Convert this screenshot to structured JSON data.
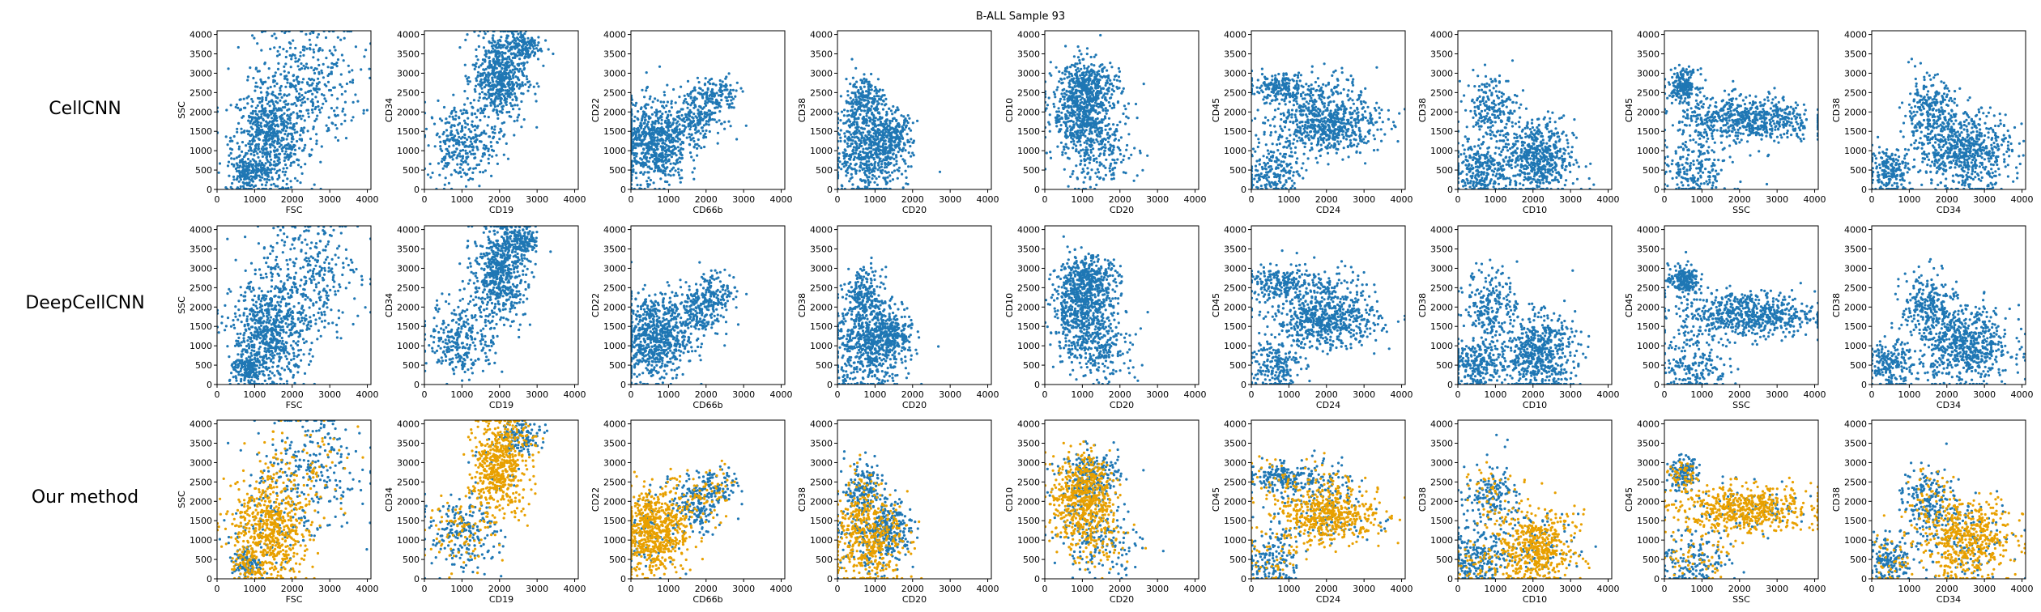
{
  "figure": {
    "title": "B-ALL Sample 93",
    "rows": [
      "CellCNN",
      "DeepCellCNN",
      "Our method"
    ]
  },
  "colors": {
    "blue": "#1f77b4",
    "orange": "#e8a000"
  },
  "chart_data": {
    "type": "scatter",
    "title": "B-ALL Sample 93",
    "xlim": [
      0,
      4096
    ],
    "ylim": [
      0,
      4096
    ],
    "ticks": [
      0,
      500,
      1000,
      1500,
      2000,
      2500,
      3000,
      3500,
      4000
    ],
    "xticks": [
      0,
      1000,
      2000,
      3000,
      4000
    ],
    "panels": [
      {
        "xlabel": "FSC",
        "ylabel": "SSC"
      },
      {
        "xlabel": "CD19",
        "ylabel": "CD34"
      },
      {
        "xlabel": "CD66b",
        "ylabel": "CD22"
      },
      {
        "xlabel": "CD20",
        "ylabel": "CD38"
      },
      {
        "xlabel": "CD20",
        "ylabel": "CD10"
      },
      {
        "xlabel": "CD24",
        "ylabel": "CD45"
      },
      {
        "xlabel": "CD10",
        "ylabel": "CD38"
      },
      {
        "xlabel": "SSC",
        "ylabel": "CD45"
      },
      {
        "xlabel": "CD34",
        "ylabel": "CD38"
      }
    ],
    "clusters": [
      [
        {
          "cx": 1400,
          "cy": 1300,
          "sx": 500,
          "sy": 700,
          "n": 700
        },
        {
          "cx": 2400,
          "cy": 2800,
          "sx": 700,
          "sy": 800,
          "n": 350
        },
        {
          "cx": 800,
          "cy": 400,
          "sx": 200,
          "sy": 200,
          "n": 150
        }
      ],
      [
        {
          "cx": 2000,
          "cy": 2900,
          "sx": 350,
          "sy": 600,
          "n": 600
        },
        {
          "cx": 1000,
          "cy": 1200,
          "sx": 450,
          "sy": 500,
          "n": 300
        },
        {
          "cx": 2600,
          "cy": 3700,
          "sx": 250,
          "sy": 200,
          "n": 150
        }
      ],
      [
        {
          "cx": 600,
          "cy": 1200,
          "sx": 450,
          "sy": 550,
          "n": 700
        },
        {
          "cx": 1700,
          "cy": 1900,
          "sx": 350,
          "sy": 350,
          "n": 220
        },
        {
          "cx": 2300,
          "cy": 2400,
          "sx": 300,
          "sy": 250,
          "n": 120
        }
      ],
      [
        {
          "cx": 800,
          "cy": 1000,
          "sx": 450,
          "sy": 600,
          "n": 550
        },
        {
          "cx": 700,
          "cy": 2300,
          "sx": 250,
          "sy": 350,
          "n": 200
        },
        {
          "cx": 1400,
          "cy": 1300,
          "sx": 300,
          "sy": 350,
          "n": 250
        }
      ],
      [
        {
          "cx": 1000,
          "cy": 2000,
          "sx": 400,
          "sy": 600,
          "n": 600
        },
        {
          "cx": 1200,
          "cy": 2700,
          "sx": 400,
          "sy": 300,
          "n": 250
        },
        {
          "cx": 1500,
          "cy": 1000,
          "sx": 500,
          "sy": 500,
          "n": 200
        }
      ],
      [
        {
          "cx": 2000,
          "cy": 1650,
          "sx": 700,
          "sy": 350,
          "n": 600
        },
        {
          "cx": 700,
          "cy": 2600,
          "sx": 400,
          "sy": 200,
          "n": 200
        },
        {
          "cx": 600,
          "cy": 500,
          "sx": 350,
          "sy": 350,
          "n": 200
        },
        {
          "cx": 2000,
          "cy": 2500,
          "sx": 500,
          "sy": 300,
          "n": 120
        }
      ],
      [
        {
          "cx": 2100,
          "cy": 800,
          "sx": 500,
          "sy": 500,
          "n": 600
        },
        {
          "cx": 900,
          "cy": 2100,
          "sx": 350,
          "sy": 450,
          "n": 220
        },
        {
          "cx": 500,
          "cy": 500,
          "sx": 350,
          "sy": 350,
          "n": 250
        }
      ],
      [
        {
          "cx": 2200,
          "cy": 1800,
          "sx": 900,
          "sy": 300,
          "n": 650
        },
        {
          "cx": 500,
          "cy": 2700,
          "sx": 200,
          "sy": 200,
          "n": 200
        },
        {
          "cx": 800,
          "cy": 500,
          "sx": 450,
          "sy": 400,
          "n": 200
        }
      ],
      [
        {
          "cx": 2500,
          "cy": 1000,
          "sx": 600,
          "sy": 500,
          "n": 650
        },
        {
          "cx": 1500,
          "cy": 2000,
          "sx": 350,
          "sy": 450,
          "n": 250
        },
        {
          "cx": 500,
          "cy": 500,
          "sx": 300,
          "sy": 300,
          "n": 200
        }
      ]
    ],
    "highlight_fraction_row3": [
      0.7,
      0.75,
      0.7,
      0.55,
      0.7,
      0.65,
      0.6,
      0.65,
      0.6
    ]
  }
}
